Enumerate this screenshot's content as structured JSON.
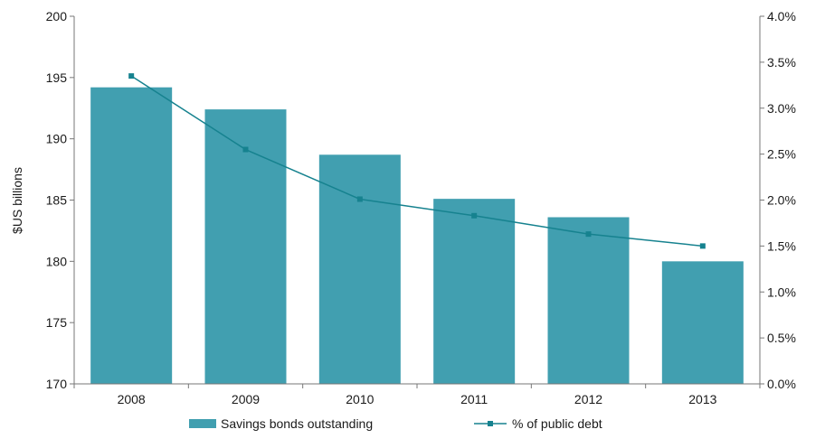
{
  "chart_data": {
    "type": "bar",
    "categories": [
      "2008",
      "2009",
      "2010",
      "2011",
      "2012",
      "2013"
    ],
    "series": [
      {
        "name": "Savings bonds outstanding",
        "type": "bar",
        "axis": "left",
        "values": [
          194.2,
          192.4,
          188.7,
          185.1,
          183.6,
          180.0
        ]
      },
      {
        "name": "% of public debt",
        "type": "line",
        "axis": "right",
        "values": [
          3.35,
          2.55,
          2.01,
          1.83,
          1.63,
          1.5
        ]
      }
    ],
    "title": "",
    "xlabel": "",
    "ylabel": "$US  billions",
    "ylim": [
      170,
      200
    ],
    "yticks": [
      "170",
      "175",
      "180",
      "185",
      "190",
      "195",
      "200"
    ],
    "y2lim": [
      0,
      4
    ],
    "y2ticks": [
      "0.0%",
      "0.5%",
      "1.0%",
      "1.5%",
      "2.0%",
      "2.5%",
      "3.0%",
      "3.5%",
      "4.0%"
    ],
    "grid": false,
    "legend": "bottom",
    "colors": {
      "bar": "#419fb0",
      "line": "#16828f",
      "axis": "#777777"
    }
  }
}
